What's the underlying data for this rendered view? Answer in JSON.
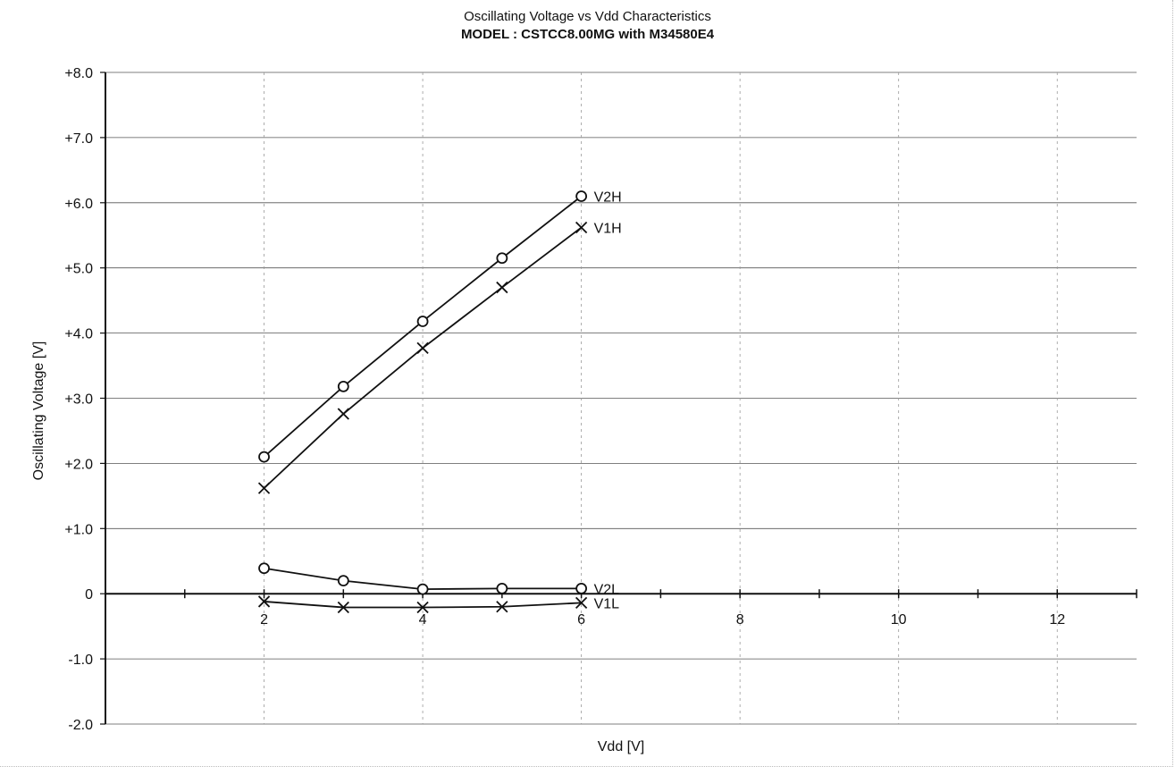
{
  "chart_data": {
    "type": "line",
    "title": "Oscillating Voltage vs Vdd Characteristics",
    "subtitle": "MODEL : CSTCC8.00MG with M34580E4",
    "xlabel": "Vdd [V]",
    "ylabel": "Oscillating Voltage [V]",
    "xlim": [
      0,
      13
    ],
    "ylim": [
      -2.0,
      8.0
    ],
    "x_tick_labels": [
      {
        "value": 2,
        "label": "2"
      },
      {
        "value": 4,
        "label": "4"
      },
      {
        "value": 6,
        "label": "6"
      },
      {
        "value": 8,
        "label": "8"
      },
      {
        "value": 10,
        "label": "10"
      },
      {
        "value": 12,
        "label": "12"
      }
    ],
    "y_tick_labels": [
      {
        "value": 8,
        "label": "+8.0"
      },
      {
        "value": 7,
        "label": "+7.0"
      },
      {
        "value": 6,
        "label": "+6.0"
      },
      {
        "value": 5,
        "label": "+5.0"
      },
      {
        "value": 4,
        "label": "+4.0"
      },
      {
        "value": 3,
        "label": "+3.0"
      },
      {
        "value": 2,
        "label": "+2.0"
      },
      {
        "value": 1,
        "label": "+1.0"
      },
      {
        "value": 0,
        "label": "0"
      },
      {
        "value": -1,
        "label": "-1.0"
      },
      {
        "value": -2,
        "label": "-2.0"
      }
    ],
    "grid": true,
    "series": [
      {
        "name": "V2H",
        "marker": "circle",
        "x": [
          2,
          3,
          4,
          5,
          6
        ],
        "y": [
          2.1,
          3.18,
          4.18,
          5.15,
          6.1
        ]
      },
      {
        "name": "V1H",
        "marker": "cross",
        "x": [
          2,
          3,
          4,
          5,
          6
        ],
        "y": [
          1.62,
          2.76,
          3.77,
          4.7,
          5.62
        ]
      },
      {
        "name": "V2L",
        "marker": "circle",
        "x": [
          2,
          3,
          4,
          5,
          6
        ],
        "y": [
          0.39,
          0.2,
          0.07,
          0.08,
          0.08
        ]
      },
      {
        "name": "V1L",
        "marker": "cross",
        "x": [
          2,
          3,
          4,
          5,
          6
        ],
        "y": [
          -0.12,
          -0.21,
          -0.21,
          -0.2,
          -0.14
        ]
      }
    ]
  }
}
